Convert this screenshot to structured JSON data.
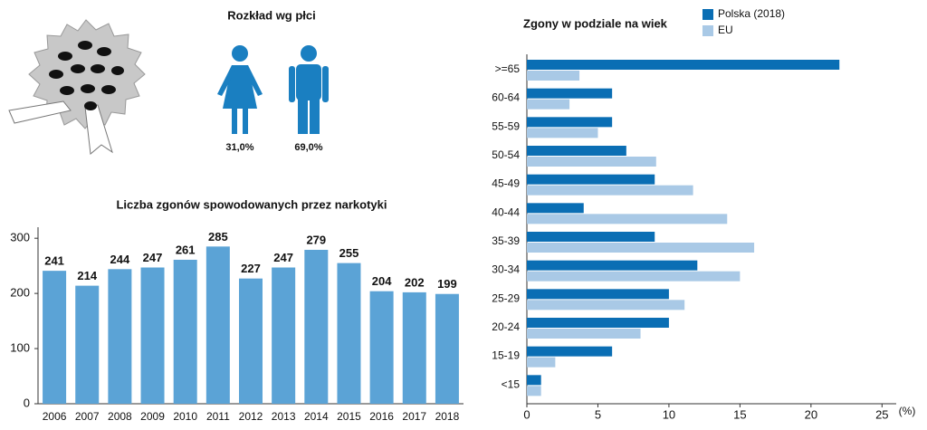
{
  "chart_data": [
    {
      "type": "pictogram",
      "title": "Rozkład wg płci",
      "values": [
        31.0,
        69.0
      ],
      "value_labels": [
        "31,0%",
        "69,0%"
      ],
      "color": "#1a7fc1"
    },
    {
      "type": "bar",
      "title": "Liczba zgonów spowodowanych przez narkotyki",
      "categories": [
        "2006",
        "2007",
        "2008",
        "2009",
        "2010",
        "2011",
        "2012",
        "2013",
        "2014",
        "2015",
        "2016",
        "2017",
        "2018"
      ],
      "values": [
        241,
        214,
        244,
        247,
        261,
        285,
        227,
        247,
        279,
        255,
        204,
        202,
        199
      ],
      "color": "#5ba3d6",
      "ylim": [
        0,
        320
      ],
      "yticks": [
        0,
        100,
        200,
        300
      ],
      "grid": false
    },
    {
      "type": "hbar",
      "title": "Zgony w podziale na wiek",
      "categories": [
        ">=65",
        "60-64",
        "55-59",
        "50-54",
        "45-49",
        "40-44",
        "35-39",
        "30-34",
        "25-29",
        "20-24",
        "15-19",
        "<15"
      ],
      "series": [
        {
          "name": "Polska (2018)",
          "color": "#0a6eb4",
          "values": [
            22,
            6,
            6,
            7,
            9,
            4,
            9,
            12,
            10,
            10,
            6,
            1
          ]
        },
        {
          "name": "EU",
          "color": "#a9c9e6",
          "values": [
            3.7,
            3,
            5,
            9.1,
            11.7,
            14.1,
            16,
            15,
            11.1,
            8,
            2,
            1
          ]
        }
      ],
      "xlim": [
        0,
        26
      ],
      "xticks": [
        0,
        5,
        10,
        15,
        20,
        25
      ],
      "xlabel": "(%)",
      "legend": "top-right",
      "grid": false
    }
  ]
}
